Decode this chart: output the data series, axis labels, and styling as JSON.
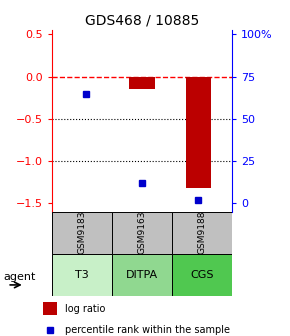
{
  "title": "GDS468 / 10885",
  "samples": [
    "GSM9183",
    "GSM9163",
    "GSM9188"
  ],
  "agents": [
    "T3",
    "DITPA",
    "CGS"
  ],
  "agent_colors": [
    "#C8F0C8",
    "#90D890",
    "#50C850"
  ],
  "log_ratios": [
    0.0,
    -0.15,
    -1.32
  ],
  "percentile_ranks": [
    65,
    12,
    2
  ],
  "bar_color": "#BB0000",
  "point_color": "#0000CC",
  "ylim_left": [
    -1.6,
    0.55
  ],
  "pct_ylim": [
    0,
    116.36
  ],
  "yticks_left": [
    0.5,
    0.0,
    -0.5,
    -1.0,
    -1.5
  ],
  "yticks_right": [
    0,
    25,
    50,
    75,
    100
  ],
  "ytick_labels_right": [
    "0",
    "25",
    "50",
    "75",
    "100%"
  ],
  "hline_y": 0.0,
  "dotted_lines": [
    -0.5,
    -1.0
  ],
  "bar_width": 0.45,
  "sample_box_color": "#C0C0C0",
  "legend_bar_color": "#BB0000",
  "legend_pt_color": "#0000CC"
}
